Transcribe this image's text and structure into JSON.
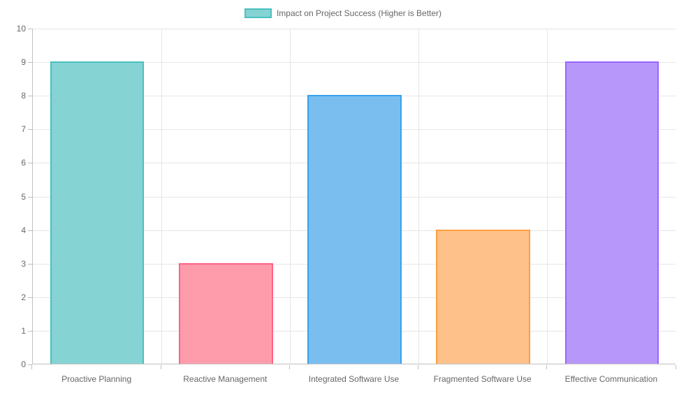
{
  "chart_data": {
    "type": "bar",
    "title": "Impact on Project Success (Higher is Better)",
    "categories": [
      "Proactive Planning",
      "Reactive Management",
      "Integrated Software Use",
      "Fragmented Software Use",
      "Effective Communication"
    ],
    "values": [
      9,
      3,
      8,
      4,
      9
    ],
    "series": [
      {
        "name": "Impact on Project Success (Higher is Better)",
        "values": [
          9,
          3,
          8,
          4,
          9
        ]
      }
    ],
    "xlabel": "",
    "ylabel": "",
    "ylim": [
      0,
      10
    ],
    "yticks": [
      0,
      1,
      2,
      3,
      4,
      5,
      6,
      7,
      8,
      9,
      10
    ],
    "grid": true,
    "legend_position": "top",
    "bar_width_ratio": 0.73,
    "bar_colors": [
      {
        "fill": "#85d3d3",
        "border": "#4bc0c0"
      },
      {
        "fill": "#ff9cac",
        "border": "#ff6384"
      },
      {
        "fill": "#7abef0",
        "border": "#36a2eb"
      },
      {
        "fill": "#ffc18a",
        "border": "#ff9f40"
      },
      {
        "fill": "#b897fa",
        "border": "#9966ff"
      }
    ],
    "legend_swatch": {
      "fill": "#85d3d3",
      "border": "#4bc0c0"
    }
  },
  "style": {
    "background": "#ffffff",
    "text_color": "#666666",
    "grid_color": "#e6e6e6",
    "axis_color": "#c0c0c0"
  }
}
